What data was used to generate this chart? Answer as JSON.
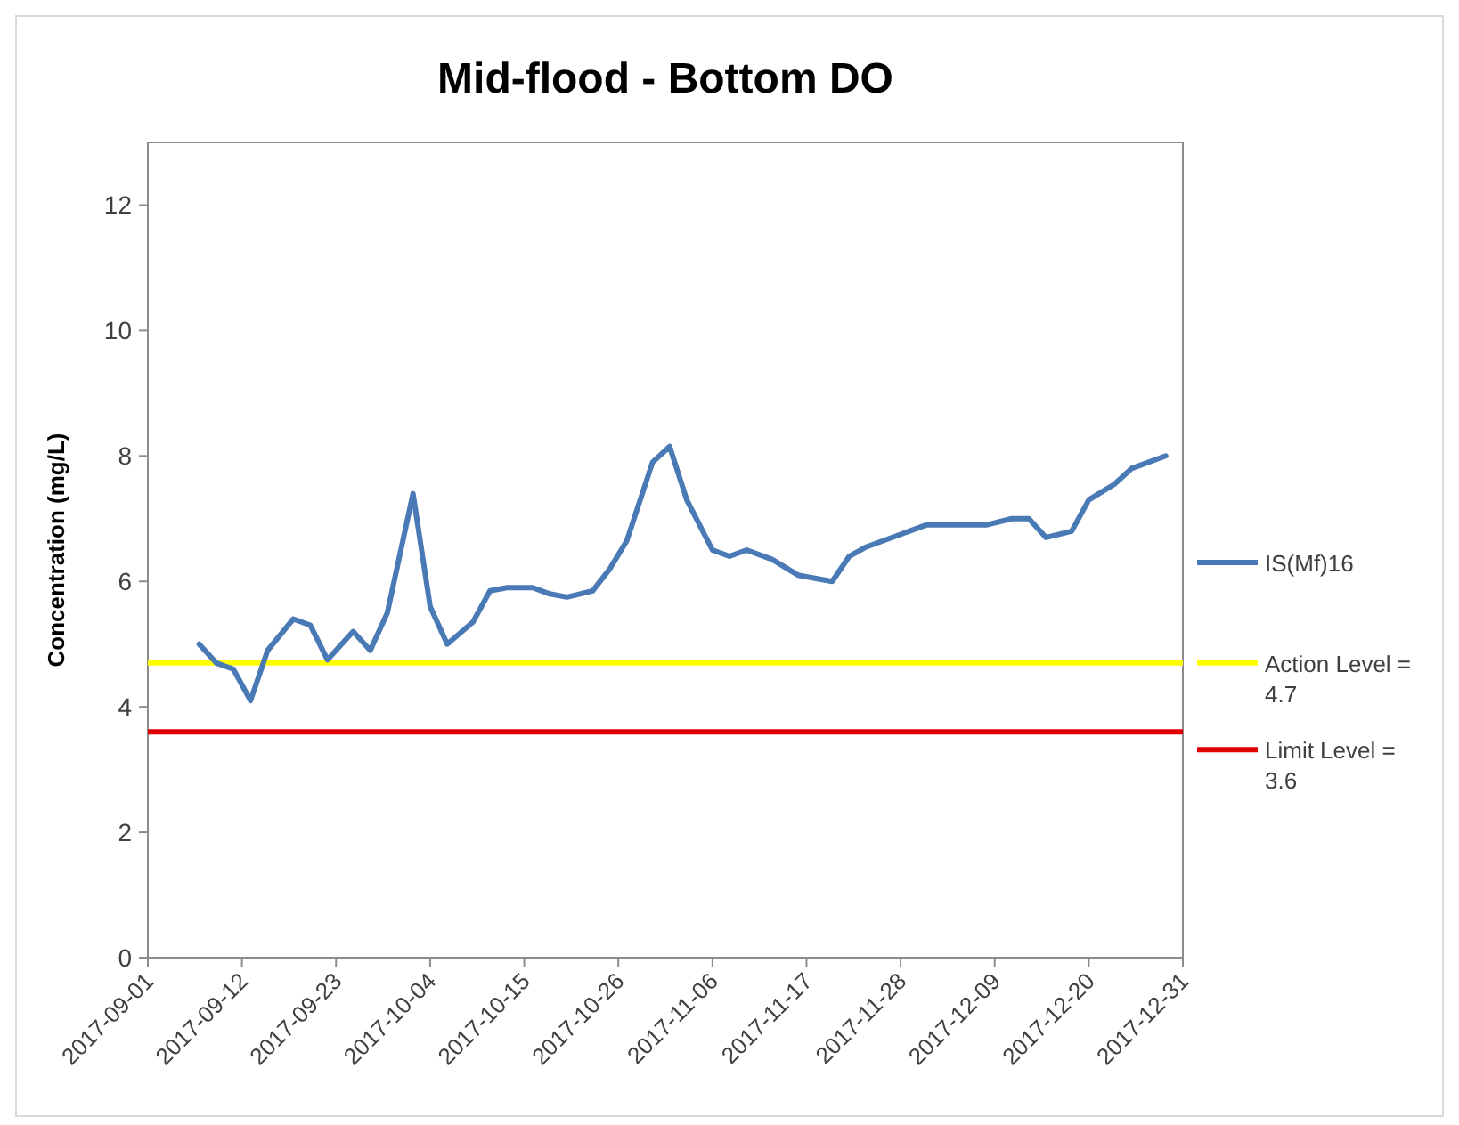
{
  "chart_data": {
    "type": "line",
    "title": "Mid-flood - Bottom DO",
    "ylabel": "Concentration (mg/L)",
    "x": [
      "2017-09-07",
      "2017-09-09",
      "2017-09-11",
      "2017-09-13",
      "2017-09-15",
      "2017-09-18",
      "2017-09-20",
      "2017-09-22",
      "2017-09-25",
      "2017-09-27",
      "2017-09-29",
      "2017-10-02",
      "2017-10-04",
      "2017-10-06",
      "2017-10-09",
      "2017-10-11",
      "2017-10-13",
      "2017-10-16",
      "2017-10-18",
      "2017-10-20",
      "2017-10-23",
      "2017-10-25",
      "2017-10-27",
      "2017-10-30",
      "2017-11-01",
      "2017-11-03",
      "2017-11-06",
      "2017-11-08",
      "2017-11-10",
      "2017-11-13",
      "2017-11-16",
      "2017-11-20",
      "2017-11-22",
      "2017-11-24",
      "2017-11-29",
      "2017-12-01",
      "2017-12-05",
      "2017-12-08",
      "2017-12-11",
      "2017-12-13",
      "2017-12-15",
      "2017-12-18",
      "2017-12-20",
      "2017-12-23",
      "2017-12-25",
      "2017-12-29"
    ],
    "series": [
      {
        "name": "IS(Mf)16",
        "color": "#4a7ab5",
        "values": [
          5.0,
          4.7,
          4.6,
          4.1,
          4.9,
          5.4,
          5.3,
          4.75,
          5.2,
          4.9,
          5.5,
          7.4,
          5.6,
          5.0,
          5.35,
          5.85,
          5.9,
          5.9,
          5.8,
          5.75,
          5.85,
          6.2,
          6.65,
          7.9,
          8.15,
          7.3,
          6.5,
          6.4,
          6.5,
          6.35,
          6.1,
          6.0,
          6.4,
          6.55,
          6.8,
          6.9,
          6.9,
          6.9,
          7.0,
          7.0,
          6.7,
          6.8,
          7.3,
          7.55,
          7.8,
          8.0
        ]
      }
    ],
    "ref_lines": [
      {
        "axis": "y",
        "value": 4.7,
        "label": "Action Level = 4.7",
        "color": "#ffff00"
      },
      {
        "axis": "y",
        "value": 3.6,
        "label": "Limit Level = 3.6",
        "color": "#e00000"
      }
    ],
    "xlim": [
      "2017-09-01",
      "2017-12-31"
    ],
    "xticks": [
      "2017-09-01",
      "2017-09-12",
      "2017-09-23",
      "2017-10-04",
      "2017-10-15",
      "2017-10-26",
      "2017-11-06",
      "2017-11-17",
      "2017-11-28",
      "2017-12-09",
      "2017-12-20",
      "2017-12-31"
    ],
    "ylim": [
      0,
      13
    ],
    "yticks": [
      0,
      2,
      4,
      6,
      8,
      10,
      12
    ],
    "grid": false,
    "legend": "right",
    "line_style": "solid",
    "marker": "none"
  }
}
